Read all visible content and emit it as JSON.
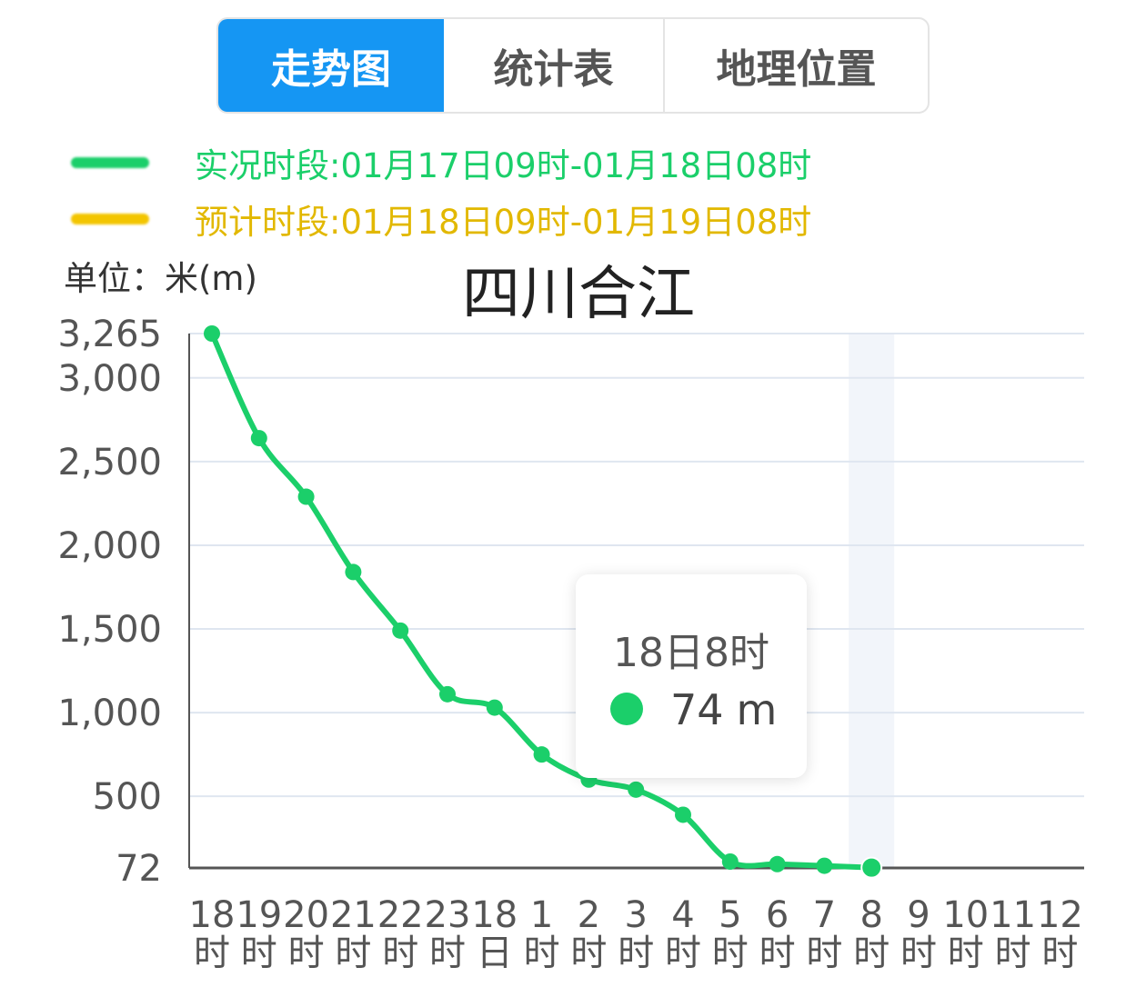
{
  "tabs": [
    {
      "label": "走势图",
      "active": true
    },
    {
      "label": "统计表",
      "active": false
    },
    {
      "label": "地理位置",
      "active": false
    }
  ],
  "legend": [
    {
      "text": "实况时段:01月17日09时-01月18日08时",
      "color": "#1bcf6a"
    },
    {
      "text": "预计时段:01月18日09时-01月19日08时",
      "color": "#f3c500"
    }
  ],
  "unit_label": "单位：米(m)",
  "colors": {
    "line": "#1bcf6a",
    "highlight_band": "#f2f5fa",
    "gridline": "#dfe6f0",
    "axis": "#555555"
  },
  "chart_data": {
    "type": "line",
    "title": "四川合江",
    "x": [
      "18时",
      "19时",
      "20时",
      "21时",
      "22时",
      "23时",
      "18日",
      "1时",
      "2时",
      "3时",
      "4时",
      "5时",
      "6时",
      "7时",
      "8时",
      "9时",
      "10时",
      "11时",
      "12时"
    ],
    "series": [
      {
        "values": [
          3265,
          2640,
          2290,
          1840,
          1490,
          1110,
          1030,
          750,
          600,
          540,
          390,
          110,
          95,
          85,
          74,
          null,
          null,
          null,
          null
        ]
      }
    ],
    "y_ticks": [
      72,
      500,
      1000,
      1500,
      2000,
      2500,
      3000,
      3265
    ],
    "y_tick_labels": [
      "72",
      "500",
      "1,000",
      "1,500",
      "2,000",
      "2,500",
      "3,000",
      "3,265"
    ],
    "ylim": [
      72,
      3265
    ],
    "grid": true,
    "highlight_index": 14
  },
  "tooltip": {
    "title": "18日8时",
    "value": "74",
    "unit": "m"
  }
}
